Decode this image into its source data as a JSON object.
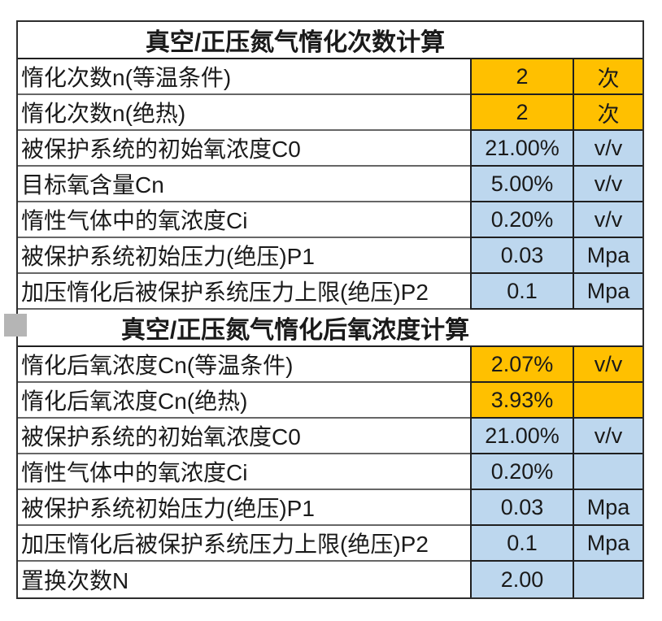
{
  "colors": {
    "highlight_orange": "#FFC000",
    "highlight_blue": "#BDD7EE",
    "grid_line": "#666666",
    "grid_dark": "#1f1f1f",
    "outer_border": "#2e2e2e",
    "text": "#1a1a1a",
    "gray_marker": "#b5b5b5",
    "background": "#ffffff"
  },
  "table": {
    "sections": [
      {
        "title": "真空/正压氮气惰化次数计算",
        "rows": [
          {
            "label": "惰化次数n(等温条件)",
            "value": "2",
            "unit": "次",
            "highlight": "orange"
          },
          {
            "label": "惰化次数n(绝热)",
            "value": "2",
            "unit": "次",
            "highlight": "orange"
          },
          {
            "label": "被保护系统的初始氧浓度C0",
            "value": "21.00%",
            "unit": "v/v",
            "highlight": "blue"
          },
          {
            "label": "目标氧含量Cn",
            "value": "5.00%",
            "unit": "v/v",
            "highlight": "blue"
          },
          {
            "label": "惰性气体中的氧浓度Ci",
            "value": "0.20%",
            "unit": "v/v",
            "highlight": "blue"
          },
          {
            "label": "被保护系统初始压力(绝压)P1",
            "value": "0.03",
            "unit": "Mpa",
            "highlight": "blue"
          },
          {
            "label": "加压惰化后被保护系统压力上限(绝压)P2",
            "value": "0.1",
            "unit": "Mpa",
            "highlight": "blue"
          }
        ]
      },
      {
        "title": "真空/正压氮气惰化后氧浓度计算",
        "rows": [
          {
            "label": "惰化后氧浓度Cn(等温条件)",
            "value": "2.07%",
            "unit": "v/v",
            "highlight": "orange"
          },
          {
            "label": "惰化后氧浓度Cn(绝热)",
            "value": "3.93%",
            "unit": "",
            "highlight": "orange"
          },
          {
            "label": "被保护系统的初始氧浓度C0",
            "value": "21.00%",
            "unit": "v/v",
            "highlight": "blue"
          },
          {
            "label": "惰性气体中的氧浓度Ci",
            "value": "0.20%",
            "unit": "",
            "highlight": "blue"
          },
          {
            "label": "被保护系统初始压力(绝压)P1",
            "value": "0.03",
            "unit": "Mpa",
            "highlight": "blue"
          },
          {
            "label": "加压惰化后被保护系统压力上限(绝压)P2",
            "value": "0.1",
            "unit": "Mpa",
            "highlight": "blue"
          },
          {
            "label": "置换次数N",
            "value": "2.00",
            "unit": "",
            "highlight": "blue"
          }
        ]
      }
    ]
  }
}
